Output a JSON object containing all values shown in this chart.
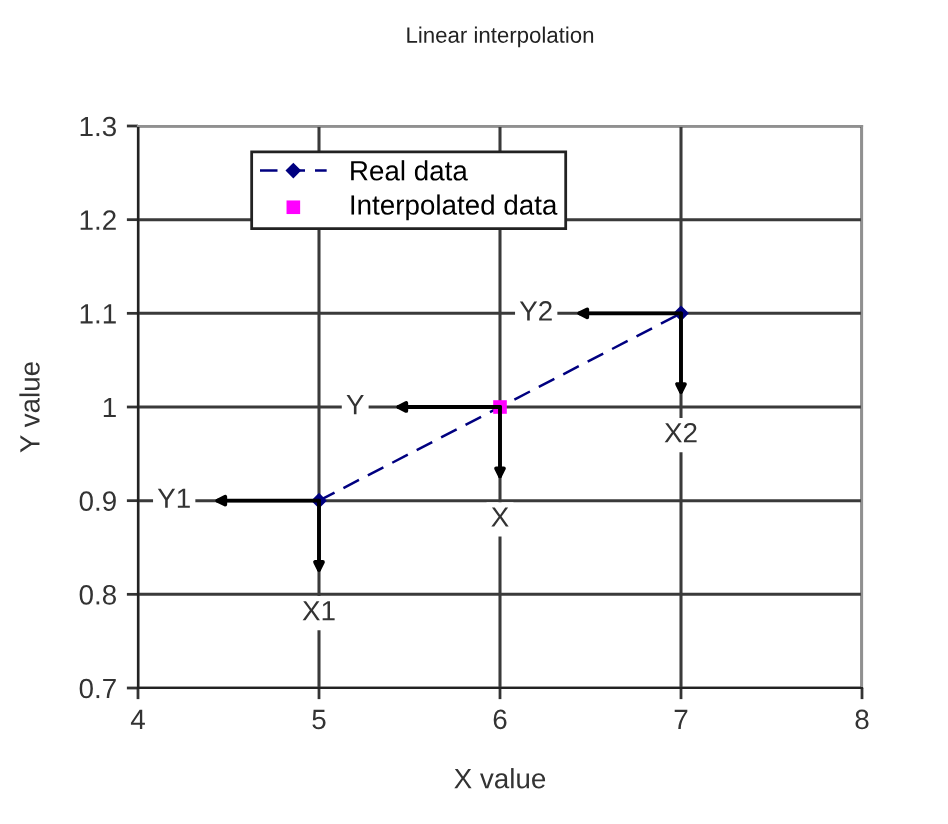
{
  "chart_data": {
    "type": "line",
    "title": "Linear interpolation",
    "xlabel": "X value",
    "ylabel": "Y value",
    "series": [
      {
        "name": "Real data",
        "color": "#000080",
        "x": [
          5,
          7
        ],
        "values": [
          0.9,
          1.1
        ],
        "marker": "diamond",
        "line_style": "dashed"
      },
      {
        "name": "Interpolated data",
        "type": "scatter",
        "color": "#ff00ff",
        "x": [
          6
        ],
        "values": [
          1
        ],
        "marker": "square"
      }
    ],
    "xlim": [
      4,
      8
    ],
    "xticks": [
      4,
      5,
      6,
      7,
      8
    ],
    "ylim": [
      0.7,
      1.3
    ],
    "yticks": [
      0.7,
      0.8,
      0.9,
      1,
      1.1,
      1.2,
      1.3
    ],
    "grid": true,
    "legend": "top left",
    "annotations": [
      {
        "text": "X1",
        "x": 5,
        "y": 0.78
      },
      {
        "text": "Y1",
        "x": 4.2,
        "y": 0.9
      },
      {
        "text": "X",
        "x": 6,
        "y": 0.88
      },
      {
        "text": "Y",
        "x": 5.2,
        "y": 1
      },
      {
        "text": "X2",
        "x": 7,
        "y": 0.97
      },
      {
        "text": "Y2",
        "x": 6.2,
        "y": 1.1
      }
    ]
  }
}
